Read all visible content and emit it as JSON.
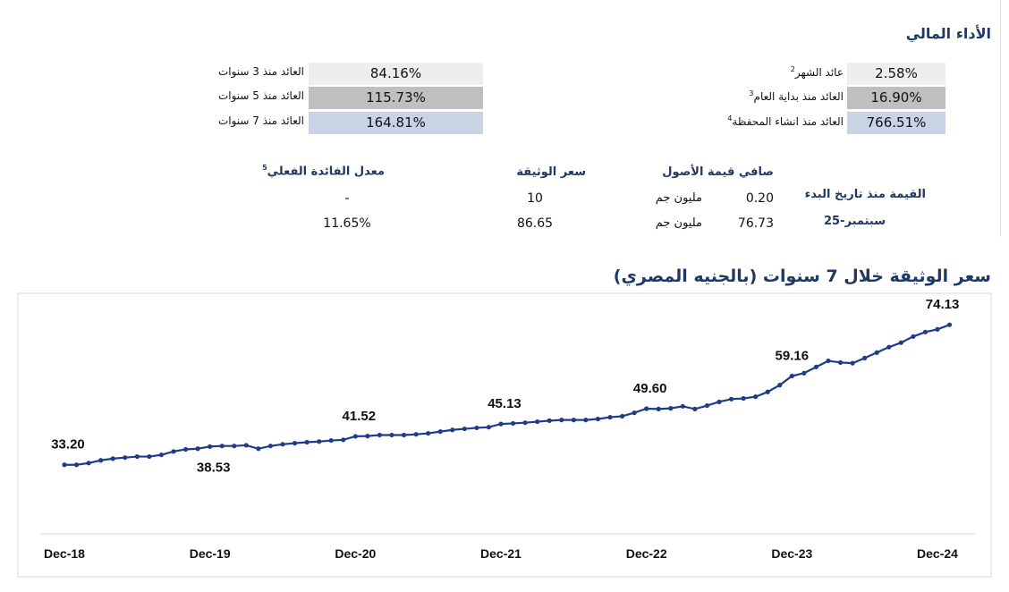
{
  "title": "الأداء المالي",
  "returns_right": [
    {
      "label": "عائد الشهر",
      "note": "2",
      "value": "2.58%"
    },
    {
      "label": "العائد منذ بداية العام",
      "note": "3",
      "value": "16.90%"
    },
    {
      "label": "العائد منذ انشاء المحفظة",
      "note": "4",
      "value": "766.51%"
    }
  ],
  "returns_left": [
    {
      "label": "العائد منذ 3 سنوات",
      "value": "84.16%"
    },
    {
      "label": "العائد منذ 5 سنوات",
      "value": "115.73%"
    },
    {
      "label": "العائد منذ 7 سنوات",
      "value": "164.81%"
    }
  ],
  "nav": {
    "headers": [
      {
        "label": "معدل الفائدة الفعلي",
        "note": "5"
      },
      {
        "label": "سعر الوثيقة"
      },
      {
        "label": "صافي قيمة الأصول"
      }
    ],
    "since_inception": "القيمة منذ تاريخ البدء",
    "date": "سبتمبر-25",
    "rows": [
      [
        "-",
        "10",
        "0.20",
        "مليون جم"
      ],
      [
        "11.65%",
        "86.65",
        "76.73",
        "مليون جم"
      ]
    ]
  },
  "chart_data": {
    "type": "line",
    "title": "سعر الوثيقة خلال 7 سنوات (بالجنيه المصري)",
    "color": "#1f3c88",
    "categories": [
      "Dec-18",
      null,
      null,
      null,
      null,
      null,
      null,
      null,
      null,
      null,
      null,
      null,
      "Dec-19",
      null,
      null,
      null,
      null,
      null,
      null,
      null,
      null,
      null,
      null,
      null,
      "Dec-20",
      null,
      null,
      null,
      null,
      null,
      null,
      null,
      null,
      null,
      null,
      null,
      "Dec-21",
      null,
      null,
      null,
      null,
      null,
      null,
      null,
      null,
      null,
      null,
      null,
      "Dec-22",
      null,
      null,
      null,
      null,
      null,
      null,
      null,
      null,
      null,
      null,
      null,
      "Dec-23",
      null,
      null,
      null,
      null,
      null,
      null,
      null,
      null,
      null,
      null,
      null,
      "Dec-24",
      null
    ],
    "values": [
      33.2,
      33.2,
      33.7,
      34.5,
      35.0,
      35.3,
      35.6,
      35.6,
      36.1,
      37.1,
      37.7,
      37.9,
      38.53,
      38.7,
      38.7,
      38.9,
      37.9,
      38.7,
      39.2,
      39.5,
      39.8,
      40.0,
      40.3,
      40.5,
      41.52,
      41.6,
      41.9,
      41.9,
      41.9,
      42.1,
      42.4,
      42.9,
      43.4,
      43.7,
      44.0,
      44.2,
      45.13,
      45.3,
      45.5,
      45.8,
      46.1,
      46.3,
      46.3,
      46.3,
      46.6,
      47.1,
      47.4,
      48.4,
      49.6,
      49.5,
      49.7,
      50.3,
      49.5,
      50.5,
      51.6,
      52.4,
      52.6,
      53.1,
      54.5,
      56.5,
      59.16,
      60.0,
      61.8,
      63.6,
      63.1,
      62.9,
      64.4,
      66.0,
      67.6,
      68.9,
      70.7,
      72.0,
      72.8,
      74.13
    ],
    "value_labels": [
      "33.20",
      null,
      null,
      null,
      null,
      null,
      null,
      null,
      null,
      null,
      null,
      null,
      "38.53",
      null,
      null,
      null,
      null,
      null,
      null,
      null,
      null,
      null,
      null,
      null,
      "41.52",
      null,
      null,
      null,
      null,
      null,
      null,
      null,
      null,
      null,
      null,
      null,
      "45.13",
      null,
      null,
      null,
      null,
      null,
      null,
      null,
      null,
      null,
      null,
      null,
      "49.60",
      null,
      null,
      null,
      null,
      null,
      null,
      null,
      null,
      null,
      null,
      null,
      "59.16",
      null,
      null,
      null,
      null,
      null,
      null,
      null,
      null,
      null,
      null,
      null,
      null,
      "74.13"
    ],
    "ylim": [
      13,
      81.5
    ]
  }
}
